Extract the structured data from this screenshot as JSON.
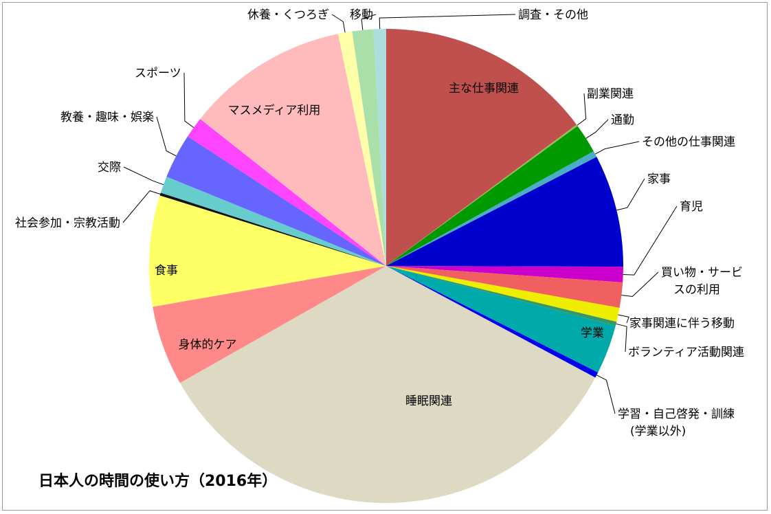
{
  "chart_data": {
    "type": "pie",
    "title": "日本人の時間の使い方（2016年）",
    "unit": "",
    "slices": [
      {
        "label": "主な仕事関連",
        "value": 15.5,
        "color": "#C0504D"
      },
      {
        "label": "副業関連",
        "value": 0.12,
        "color": "#9BBB59"
      },
      {
        "label": "通勤",
        "value": 2.1,
        "color": "#009900"
      },
      {
        "label": "その他の仕事関連",
        "value": 0.45,
        "color": "#4BACC6"
      },
      {
        "label": "家事",
        "value": 8.0,
        "color": "#0000CC"
      },
      {
        "label": "育児",
        "value": 1.1,
        "color": "#CC00CC"
      },
      {
        "label": "買い物・サービスの利用",
        "value": 1.8,
        "color": "#F06060"
      },
      {
        "label": "家事関連に伴う移動",
        "value": 1.0,
        "color": "#EEEE00"
      },
      {
        "label": "ボランティア活動関連",
        "value": 0.3,
        "color": "#339966"
      },
      {
        "label": "学業",
        "value": 3.5,
        "color": "#00AAAA"
      },
      {
        "label": "学習・自己啓発・訓練(学業以外)",
        "value": 0.4,
        "color": "#0000EE"
      },
      {
        "label": "睡眠関連",
        "value": 35.5,
        "color": "#DDD9C3"
      },
      {
        "label": "身体的ケア",
        "value": 5.7,
        "color": "#FF8888"
      },
      {
        "label": "食事",
        "value": 7.9,
        "color": "#FFFF66"
      },
      {
        "label": "社会参加・宗教活動",
        "value": 0.2,
        "color": "#111111"
      },
      {
        "label": "交際",
        "value": 1.2,
        "color": "#66CCCC"
      },
      {
        "label": "教養・趣味・娯楽",
        "value": 3.2,
        "color": "#6666FF"
      },
      {
        "label": "スポーツ",
        "value": 1.5,
        "color": "#FF44FF"
      },
      {
        "label": "マスメディア利用",
        "value": 11.6,
        "color": "#FFBBBB"
      },
      {
        "label": "休養・くつろぎ",
        "value": 1.0,
        "color": "#FFFFAA"
      },
      {
        "label": "移動",
        "value": 1.5,
        "color": "#A9DFA9"
      },
      {
        "label": "調査・その他",
        "value": 0.9,
        "color": "#ADDDDD"
      }
    ]
  }
}
